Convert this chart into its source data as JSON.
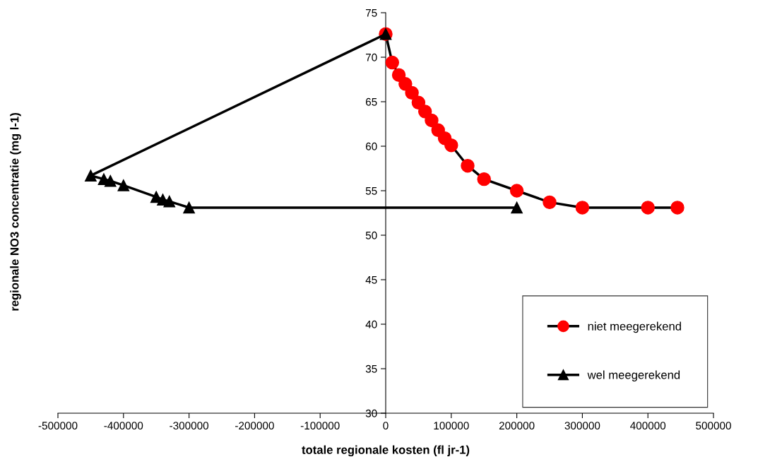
{
  "chart_data": {
    "type": "line",
    "xlabel": "totale regionale kosten (fl jr-1)",
    "ylabel": "regionale NO3 concentratie (mg l-1)",
    "xlim": [
      -500000,
      500000
    ],
    "ylim": [
      30,
      75
    ],
    "xticks": [
      -500000,
      -400000,
      -300000,
      -200000,
      -100000,
      0,
      100000,
      200000,
      300000,
      400000,
      500000
    ],
    "yticks": [
      30,
      35,
      40,
      45,
      50,
      55,
      60,
      65,
      70,
      75
    ],
    "grid": false,
    "legend": "bottom right",
    "series": [
      {
        "name": "niet meegerekend",
        "color": "#ff0000",
        "marker": "circle",
        "x": [
          0,
          10000,
          20000,
          30000,
          40000,
          50000,
          60000,
          70000,
          80000,
          90000,
          100000,
          125000,
          150000,
          200000,
          250000,
          300000,
          400000,
          445000
        ],
        "values": [
          72.6,
          69.4,
          68,
          67,
          66,
          64.9,
          63.9,
          62.9,
          61.8,
          60.9,
          60.1,
          57.8,
          56.3,
          55,
          53.7,
          53.1,
          53.1,
          53.1
        ]
      },
      {
        "name": "wel meegerekend",
        "color": "#000000",
        "marker": "triangle",
        "x": [
          0,
          -450000,
          -430000,
          -420000,
          -400000,
          -350000,
          -340000,
          -330000,
          -300000,
          200000
        ],
        "values": [
          72.6,
          56.7,
          56.3,
          56.1,
          55.6,
          54.3,
          54.0,
          53.8,
          53.1,
          53.1
        ]
      }
    ]
  }
}
